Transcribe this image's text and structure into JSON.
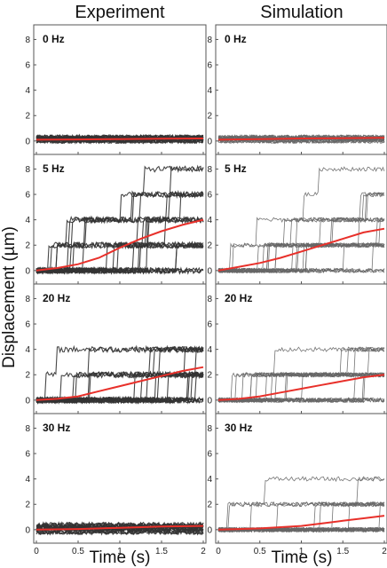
{
  "figure": {
    "column_titles": [
      "Experiment",
      "Simulation"
    ],
    "ylabel": "Displacement (µm)",
    "xlabel": "Time (s)"
  },
  "colors": {
    "trace_dark": "#333333",
    "trace_light": "#666666",
    "mean": "#e8302a",
    "frame": "#555555"
  },
  "chart_data": [
    {
      "type": "line",
      "panel": "Experiment",
      "label": "0 Hz",
      "xlim": [
        0,
        2
      ],
      "ylim": [
        -0.5,
        8.8
      ],
      "yticks": [
        0,
        2,
        4,
        6,
        8
      ],
      "xticks": [
        0,
        0.5,
        1,
        1.5,
        2
      ],
      "xtick_labels": [
        "0",
        "0.5",
        "1",
        "1.5",
        "2"
      ],
      "mean_series": {
        "x": [
          0,
          0.5,
          1,
          1.5,
          2
        ],
        "y": [
          0.1,
          0.12,
          0.15,
          0.18,
          0.2
        ]
      },
      "traces": {
        "count": 20,
        "levels": [
          0,
          0.2,
          0.3
        ],
        "steps": []
      }
    },
    {
      "type": "line",
      "panel": "Simulation",
      "label": "0 Hz",
      "xlim": [
        0,
        2
      ],
      "ylim": [
        -0.5,
        8.8
      ],
      "yticks": [
        0,
        2,
        4,
        6,
        8
      ],
      "xticks": [
        0,
        0.5,
        1,
        1.5,
        2
      ],
      "xtick_labels": [
        "0",
        "0.5",
        "1",
        "1.5",
        "2"
      ],
      "mean_series": {
        "x": [
          0,
          0.5,
          1,
          1.5,
          2
        ],
        "y": [
          0.1,
          0.15,
          0.2,
          0.22,
          0.25
        ]
      },
      "traces": {
        "count": 20,
        "levels": [
          0,
          0.2,
          0.3
        ],
        "steps": []
      }
    },
    {
      "type": "line",
      "panel": "Experiment",
      "label": "5 Hz",
      "xlim": [
        0,
        2
      ],
      "ylim": [
        -0.5,
        8.8
      ],
      "yticks": [
        0,
        2,
        4,
        6,
        8
      ],
      "xticks": [
        0,
        0.5,
        1,
        1.5,
        2
      ],
      "xtick_labels": [
        "0",
        "0.5",
        "1",
        "1.5",
        "2"
      ],
      "mean_series": {
        "x": [
          0,
          0.25,
          0.5,
          0.75,
          1,
          1.25,
          1.5,
          1.75,
          2
        ],
        "y": [
          0,
          0.2,
          0.5,
          1.0,
          1.8,
          2.5,
          3.1,
          3.6,
          4.0
        ]
      },
      "traces": {
        "count": 20,
        "final_levels": [
          0,
          0,
          0,
          2,
          2,
          2,
          2,
          2,
          2,
          4,
          4,
          4,
          4,
          6,
          6,
          6,
          6,
          6,
          8,
          8
        ]
      }
    },
    {
      "type": "line",
      "panel": "Simulation",
      "label": "5 Hz",
      "xlim": [
        0,
        2
      ],
      "ylim": [
        -0.5,
        8.8
      ],
      "yticks": [
        0,
        2,
        4,
        6,
        8
      ],
      "xticks": [
        0,
        0.5,
        1,
        1.5,
        2
      ],
      "xtick_labels": [
        "0",
        "0.5",
        "1",
        "1.5",
        "2"
      ],
      "mean_series": {
        "x": [
          0,
          0.25,
          0.5,
          0.75,
          1,
          1.25,
          1.5,
          1.75,
          2
        ],
        "y": [
          0,
          0.3,
          0.6,
          1.0,
          1.5,
          2.0,
          2.5,
          3.0,
          3.3
        ]
      },
      "traces": {
        "count": 20,
        "final_levels": [
          0,
          0,
          2,
          2,
          2,
          2,
          2,
          2,
          2,
          4,
          4,
          4,
          4,
          4,
          6,
          6,
          6,
          6,
          8,
          0
        ]
      }
    },
    {
      "type": "line",
      "panel": "Experiment",
      "label": "20 Hz",
      "xlim": [
        0,
        2
      ],
      "ylim": [
        -0.5,
        8.8
      ],
      "yticks": [
        0,
        2,
        4,
        6,
        8
      ],
      "xticks": [
        0,
        0.5,
        1,
        1.5,
        2
      ],
      "xtick_labels": [
        "0",
        "0.5",
        "1",
        "1.5",
        "2"
      ],
      "mean_series": {
        "x": [
          0,
          0.25,
          0.5,
          0.75,
          1,
          1.25,
          1.5,
          1.75,
          2
        ],
        "y": [
          0,
          0.1,
          0.3,
          0.7,
          1.1,
          1.5,
          1.9,
          2.3,
          2.6
        ]
      },
      "traces": {
        "count": 20,
        "final_levels": [
          0,
          0,
          0,
          2,
          2,
          2,
          2,
          2,
          2,
          2,
          2,
          4,
          4,
          4,
          4,
          4,
          4,
          4,
          0,
          2
        ]
      }
    },
    {
      "type": "line",
      "panel": "Simulation",
      "label": "20 Hz",
      "xlim": [
        0,
        2
      ],
      "ylim": [
        -0.5,
        8.8
      ],
      "yticks": [
        0,
        2,
        4,
        6,
        8
      ],
      "xticks": [
        0,
        0.5,
        1,
        1.5,
        2
      ],
      "xtick_labels": [
        "0",
        "0.5",
        "1",
        "1.5",
        "2"
      ],
      "mean_series": {
        "x": [
          0,
          0.25,
          0.5,
          0.75,
          1,
          1.25,
          1.5,
          1.75,
          2
        ],
        "y": [
          0,
          0.1,
          0.3,
          0.6,
          0.9,
          1.2,
          1.5,
          1.8,
          2.0
        ]
      },
      "traces": {
        "count": 20,
        "final_levels": [
          0,
          0,
          0,
          0,
          2,
          2,
          2,
          2,
          2,
          2,
          2,
          2,
          2,
          4,
          4,
          4,
          4,
          4,
          0,
          2
        ]
      }
    },
    {
      "type": "line",
      "panel": "Experiment",
      "label": "30 Hz",
      "xlim": [
        0,
        2
      ],
      "ylim": [
        -0.5,
        8.8
      ],
      "yticks": [
        0,
        2,
        4,
        6,
        8
      ],
      "xticks": [
        0,
        0.5,
        1,
        1.5,
        2
      ],
      "xtick_labels": [
        "0",
        "0.5",
        "1",
        "1.5",
        "2"
      ],
      "mean_series": {
        "x": [
          0,
          0.5,
          1,
          1.5,
          2
        ],
        "y": [
          0,
          0.05,
          0.15,
          0.25,
          0.3
        ]
      },
      "traces": {
        "count": 20,
        "levels": [
          -0.2,
          0,
          0.1,
          0.2,
          0.3,
          0.4
        ],
        "steps": []
      }
    },
    {
      "type": "line",
      "panel": "Simulation",
      "label": "30 Hz",
      "xlim": [
        0,
        2
      ],
      "ylim": [
        -0.5,
        8.8
      ],
      "yticks": [
        0,
        2,
        4,
        6,
        8
      ],
      "xticks": [
        0,
        0.5,
        1,
        1.5,
        2
      ],
      "xtick_labels": [
        "0",
        "0.5",
        "1",
        "1.5",
        "2"
      ],
      "mean_series": {
        "x": [
          0,
          0.25,
          0.5,
          0.75,
          1,
          1.25,
          1.5,
          1.75,
          2
        ],
        "y": [
          0,
          0.05,
          0.1,
          0.2,
          0.3,
          0.5,
          0.7,
          0.9,
          1.1
        ]
      },
      "traces": {
        "count": 20,
        "final_levels": [
          0,
          0,
          0,
          0,
          0,
          0,
          0,
          0,
          0,
          0,
          0,
          2,
          2,
          2,
          2,
          2,
          2,
          2,
          4,
          4
        ]
      }
    }
  ]
}
